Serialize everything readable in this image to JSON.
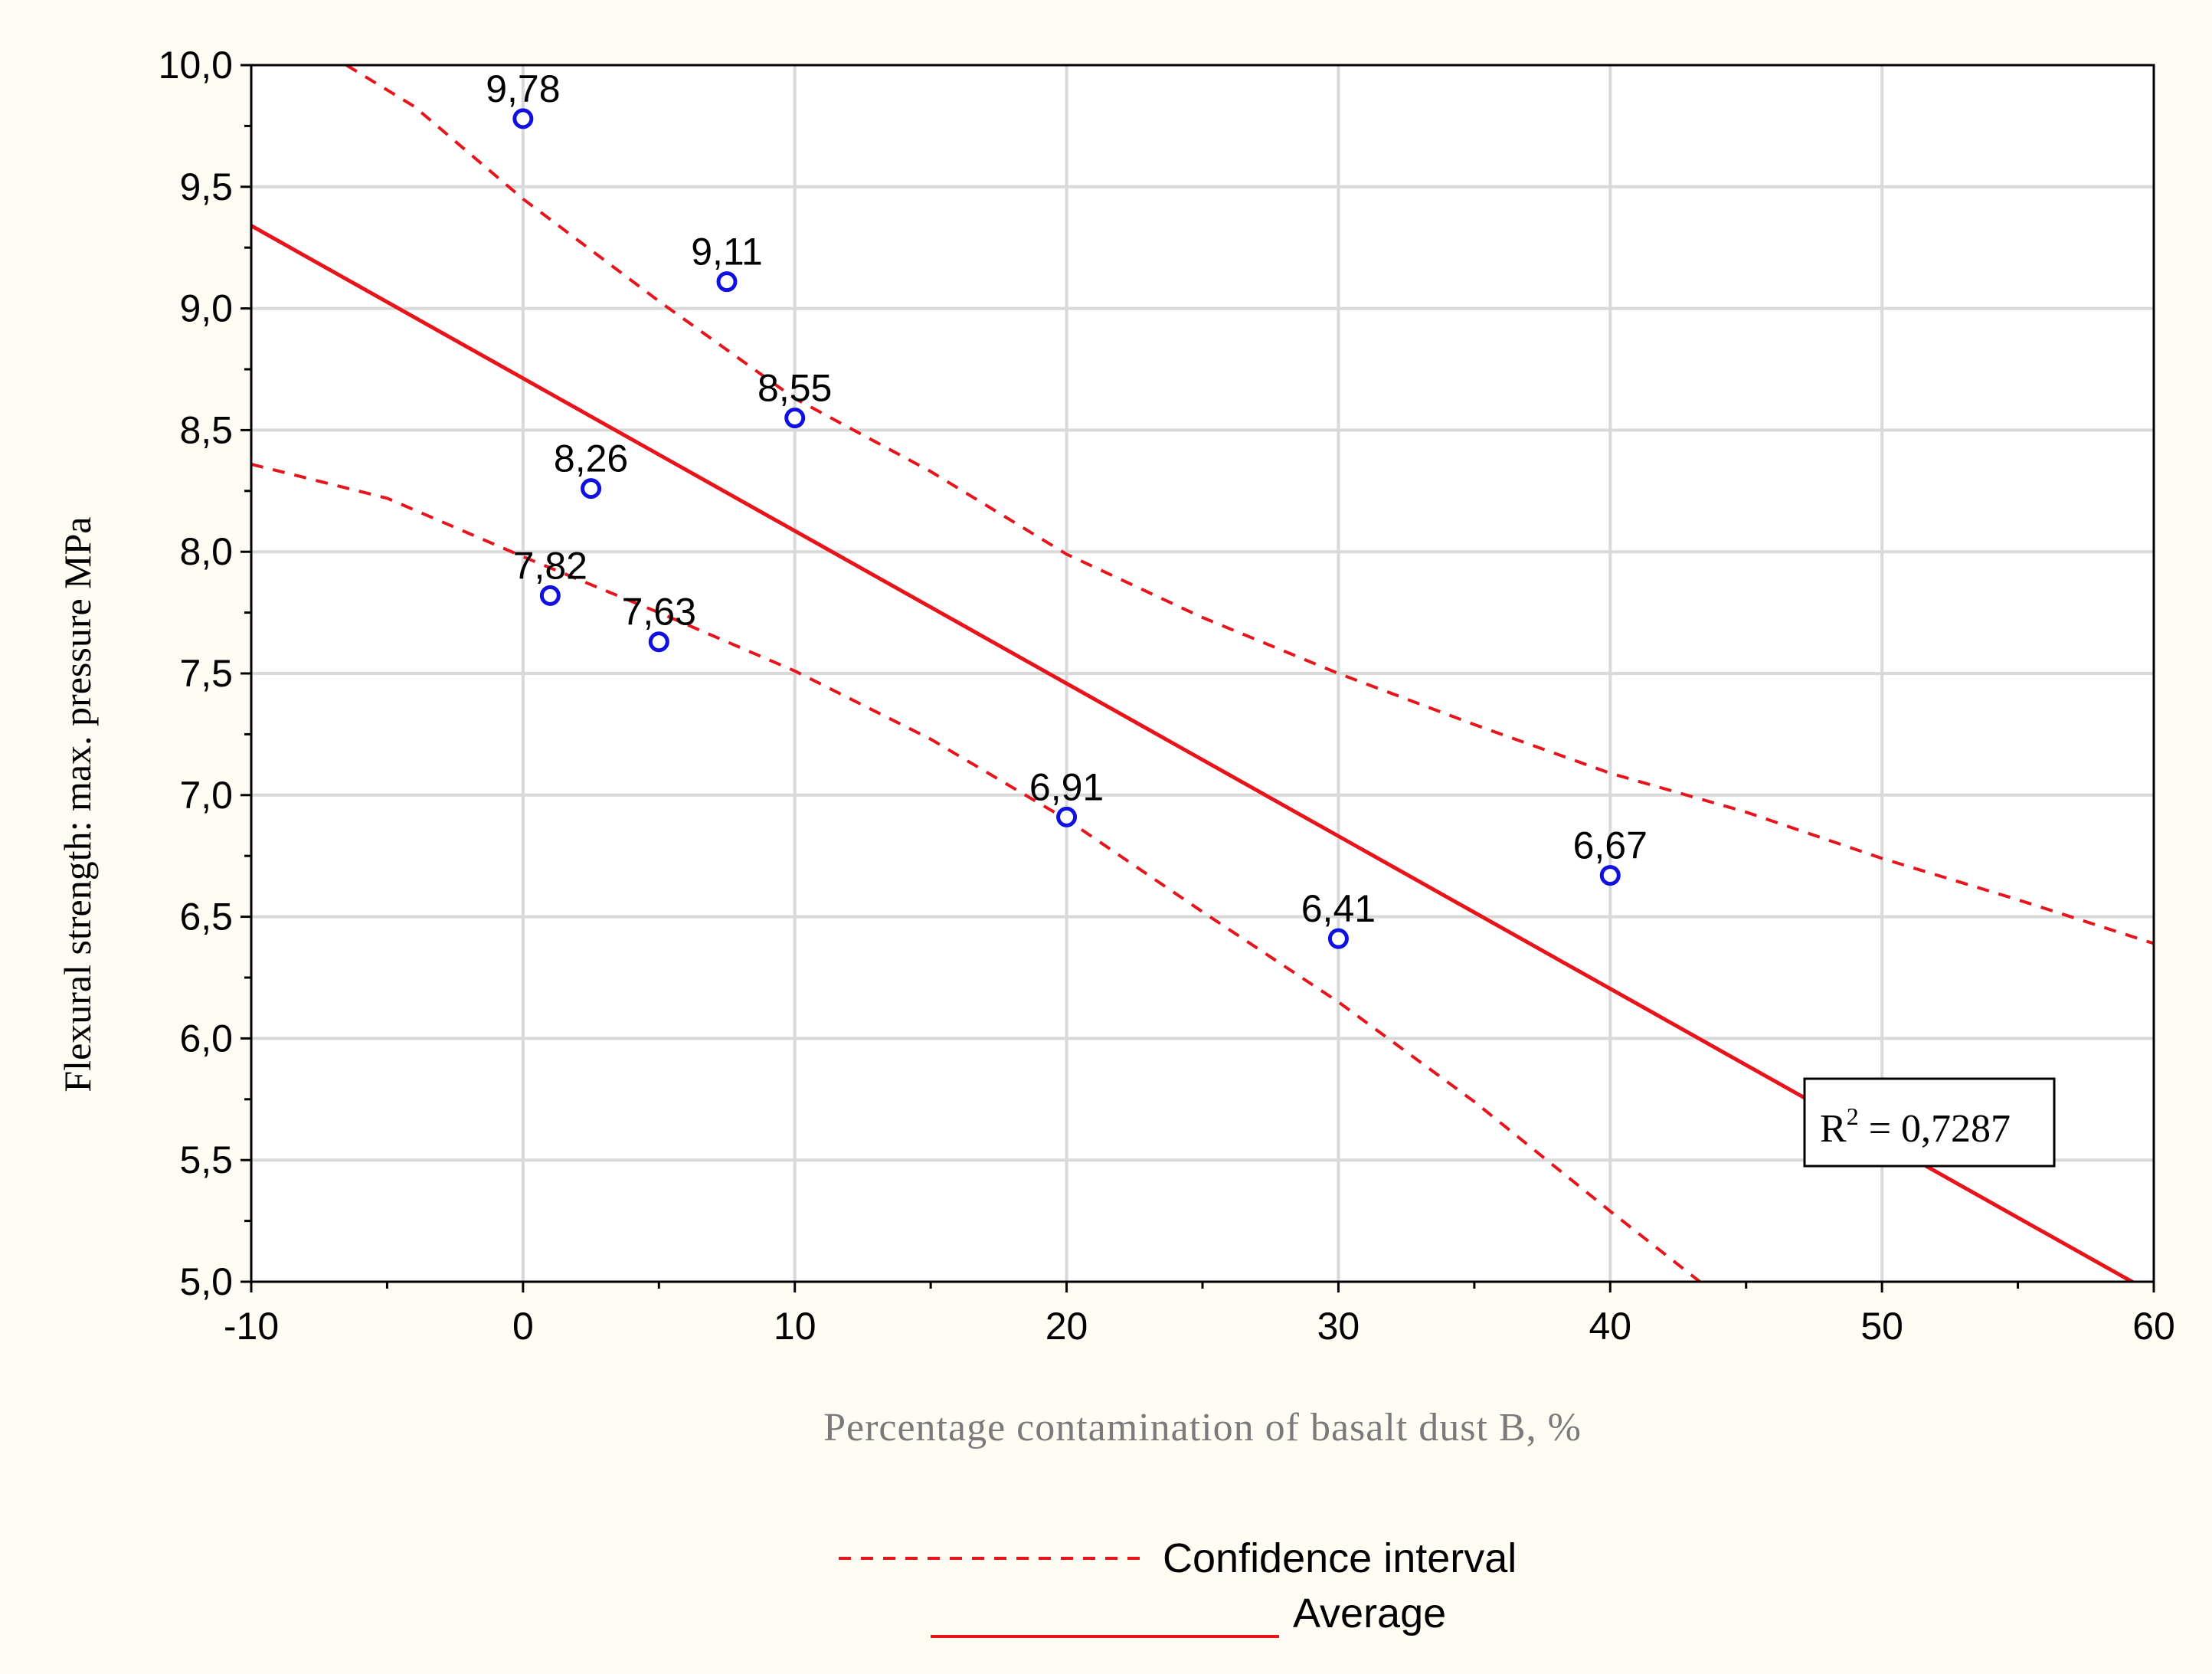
{
  "chart_data": {
    "type": "scatter",
    "title": "",
    "xlabel": "Percentage contamination of basalt dust B, %",
    "ylabel": "Flexural strength: max. pressure MPa",
    "xlim": [
      -10,
      60
    ],
    "ylim": [
      5.0,
      10.0
    ],
    "x_ticks": [
      "-10",
      "0",
      "10",
      "20",
      "30",
      "40",
      "50",
      "60"
    ],
    "x_tick_values": [
      -10,
      0,
      10,
      20,
      30,
      40,
      50,
      60
    ],
    "y_ticks": [
      "5,0",
      "5,5",
      "6,0",
      "6,5",
      "7,0",
      "7,5",
      "8,0",
      "8,5",
      "9,0",
      "9,5",
      "10,0"
    ],
    "y_tick_values": [
      5.0,
      5.5,
      6.0,
      6.5,
      7.0,
      7.5,
      8.0,
      8.5,
      9.0,
      9.5,
      10.0
    ],
    "grid": true,
    "points": [
      {
        "x": 0,
        "y": 9.78,
        "label": "9,78"
      },
      {
        "x": 7.5,
        "y": 9.11,
        "label": "9,11"
      },
      {
        "x": 10,
        "y": 8.55,
        "label": "8,55"
      },
      {
        "x": 2.5,
        "y": 8.26,
        "label": "8,26"
      },
      {
        "x": 1,
        "y": 7.82,
        "label": "7,82"
      },
      {
        "x": 5,
        "y": 7.63,
        "label": "7,63"
      },
      {
        "x": 20,
        "y": 6.91,
        "label": "6,91"
      },
      {
        "x": 30,
        "y": 6.41,
        "label": "6,41"
      },
      {
        "x": 40,
        "y": 6.67,
        "label": "6,67"
      }
    ],
    "series": [
      {
        "name": "Average",
        "style": "solid",
        "x": [
          -10,
          60
        ],
        "y": [
          9.34,
          4.95
        ]
      },
      {
        "name": "Confidence interval",
        "style": "dashed",
        "part": "upper",
        "x": [
          -6.5,
          -4,
          0,
          5,
          10,
          15,
          20,
          25,
          30,
          35,
          40,
          45,
          50,
          55,
          60
        ],
        "y": [
          10.0,
          9.83,
          9.45,
          9.03,
          8.63,
          8.33,
          7.99,
          7.73,
          7.5,
          7.29,
          7.09,
          6.93,
          6.74,
          6.57,
          6.39
        ]
      },
      {
        "name": "Confidence interval",
        "style": "dashed",
        "part": "lower",
        "x": [
          -10,
          -5,
          0,
          5,
          10,
          15,
          20,
          25,
          30,
          35,
          40,
          43.3
        ],
        "y": [
          8.36,
          8.22,
          7.98,
          7.75,
          7.51,
          7.23,
          6.9,
          6.52,
          6.15,
          5.74,
          5.29,
          5.0
        ]
      }
    ],
    "legend": [
      {
        "label": "Confidence interval",
        "style": "dashed"
      },
      {
        "label": "Average",
        "style": "solid"
      }
    ],
    "legend_position": "bottom-center",
    "annotation": {
      "r2_label": "R",
      "r2_sup": "2",
      "r2_value": " = 0,7287"
    },
    "colors": {
      "line": "#e8141c",
      "point": "#1010e0",
      "grid": "#d9d9d9",
      "axis": "#000000",
      "background": "#fefcf3"
    }
  }
}
